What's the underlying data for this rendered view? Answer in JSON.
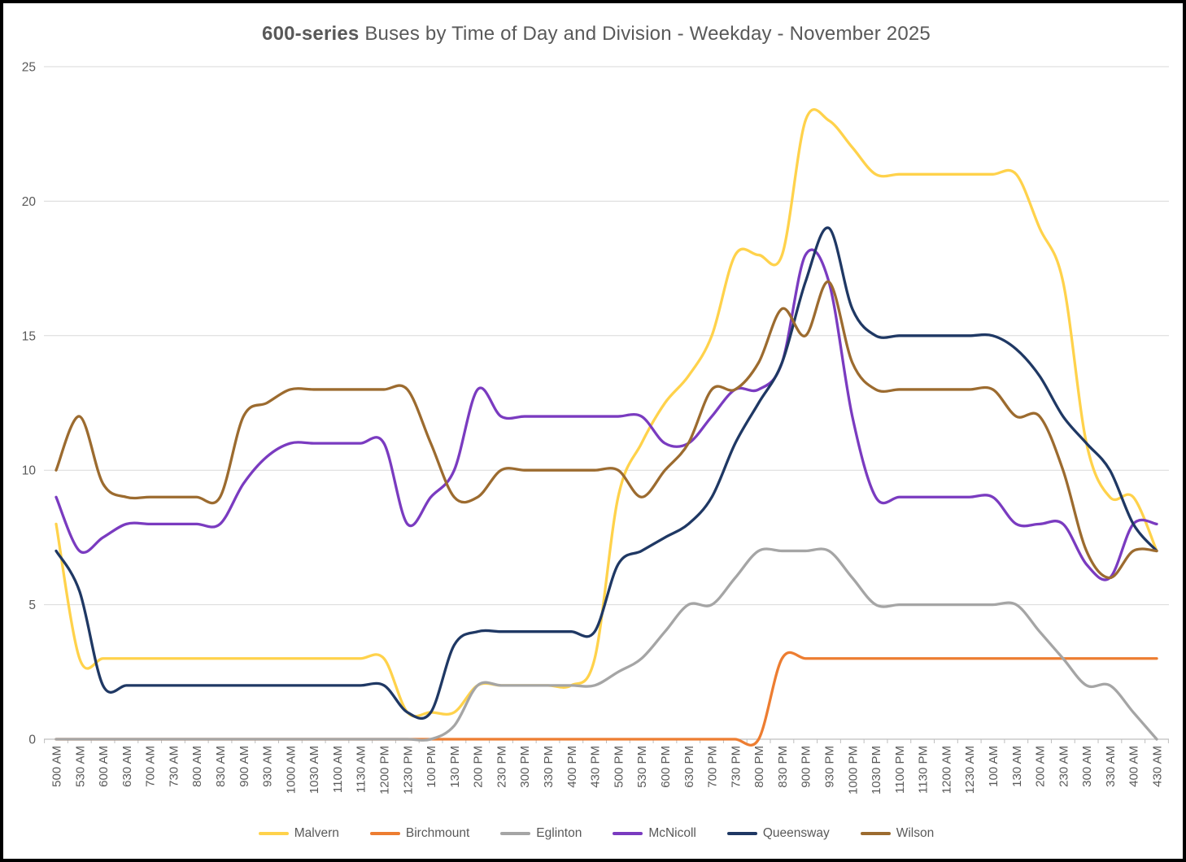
{
  "title": {
    "bold": "600-series",
    "rest": " Buses by Time of Day and Division - Weekday - November 2025"
  },
  "axes": {
    "y_tick_labels": [
      "0",
      "5",
      "10",
      "15",
      "20",
      "25"
    ],
    "y_min": 0,
    "y_max": 25,
    "x_label_color": "#595959",
    "gridline_color": "#d9d9d9",
    "axis_line_color": "#bfbfbf"
  },
  "chart_data": {
    "type": "line",
    "title": "600-series Buses by Time of Day and Division - Weekday - November 2025",
    "xlabel": "",
    "ylabel": "",
    "ylim": [
      0,
      25
    ],
    "grid": true,
    "smooth": true,
    "legend_position": "bottom",
    "categories": [
      "500 AM",
      "530 AM",
      "600 AM",
      "630 AM",
      "700 AM",
      "730 AM",
      "800 AM",
      "830 AM",
      "900 AM",
      "930 AM",
      "1000 AM",
      "1030 AM",
      "1100 AM",
      "1130 AM",
      "1200 PM",
      "1230 PM",
      "100 PM",
      "130 PM",
      "200 PM",
      "230 PM",
      "300 PM",
      "330 PM",
      "400 PM",
      "430 PM",
      "500 PM",
      "530 PM",
      "600 PM",
      "630 PM",
      "700 PM",
      "730 PM",
      "800 PM",
      "830 PM",
      "900 PM",
      "930 PM",
      "1000 PM",
      "1030 PM",
      "1100 PM",
      "1130 PM",
      "1200 AM",
      "1230 AM",
      "100 AM",
      "130 AM",
      "200 AM",
      "230 AM",
      "300 AM",
      "330 AM",
      "400 AM",
      "430 AM"
    ],
    "series": [
      {
        "name": "Malvern",
        "color": "#ffd24b",
        "values": [
          8,
          3,
          3,
          3,
          3,
          3,
          3,
          3,
          3,
          3,
          3,
          3,
          3,
          3,
          3,
          1,
          1,
          1,
          2,
          2,
          2,
          2,
          2,
          3,
          9,
          11,
          12.5,
          13.5,
          15,
          18,
          18,
          18,
          23,
          23,
          22,
          21,
          21,
          21,
          21,
          21,
          21,
          21,
          19,
          17,
          11,
          9,
          9,
          7
        ]
      },
      {
        "name": "Birchmount",
        "color": "#ed7d31",
        "values": [
          0,
          0,
          0,
          0,
          0,
          0,
          0,
          0,
          0,
          0,
          0,
          0,
          0,
          0,
          0,
          0,
          0,
          0,
          0,
          0,
          0,
          0,
          0,
          0,
          0,
          0,
          0,
          0,
          0,
          0,
          0,
          3,
          3,
          3,
          3,
          3,
          3,
          3,
          3,
          3,
          3,
          3,
          3,
          3,
          3,
          3,
          3,
          3
        ]
      },
      {
        "name": "Eglinton",
        "color": "#a5a5a5",
        "values": [
          0,
          0,
          0,
          0,
          0,
          0,
          0,
          0,
          0,
          0,
          0,
          0,
          0,
          0,
          0,
          0,
          0,
          0.5,
          2,
          2,
          2,
          2,
          2,
          2,
          2.5,
          3,
          4,
          5,
          5,
          6,
          7,
          7,
          7,
          7,
          6,
          5,
          5,
          5,
          5,
          5,
          5,
          5,
          4,
          3,
          2,
          2,
          1,
          0
        ]
      },
      {
        "name": "McNicoll",
        "color": "#7a3bc0",
        "values": [
          9,
          7,
          7.5,
          8,
          8,
          8,
          8,
          8,
          9.5,
          10.5,
          11,
          11,
          11,
          11,
          11,
          8,
          9,
          10,
          13,
          12,
          12,
          12,
          12,
          12,
          12,
          12,
          11,
          11,
          12,
          13,
          13,
          14,
          18,
          17,
          12,
          9,
          9,
          9,
          9,
          9,
          9,
          8,
          8,
          8,
          6.5,
          6,
          8,
          8
        ]
      },
      {
        "name": "Queensway",
        "color": "#1f3864",
        "values": [
          7,
          5.5,
          2,
          2,
          2,
          2,
          2,
          2,
          2,
          2,
          2,
          2,
          2,
          2,
          2,
          1,
          1,
          3.5,
          4,
          4,
          4,
          4,
          4,
          4,
          6.5,
          7,
          7.5,
          8,
          9,
          11,
          12.5,
          14,
          17,
          19,
          16,
          15,
          15,
          15,
          15,
          15,
          15,
          14.5,
          13.5,
          12,
          11,
          10,
          8,
          7
        ]
      },
      {
        "name": "Wilson",
        "color": "#9c6b2f",
        "values": [
          10,
          12,
          9.5,
          9,
          9,
          9,
          9,
          9,
          12,
          12.5,
          13,
          13,
          13,
          13,
          13,
          13,
          11,
          9,
          9,
          10,
          10,
          10,
          10,
          10,
          10,
          9,
          10,
          11,
          13,
          13,
          14,
          16,
          15,
          17,
          14,
          13,
          13,
          13,
          13,
          13,
          13,
          12,
          12,
          10,
          7,
          6,
          7,
          7
        ]
      }
    ]
  }
}
